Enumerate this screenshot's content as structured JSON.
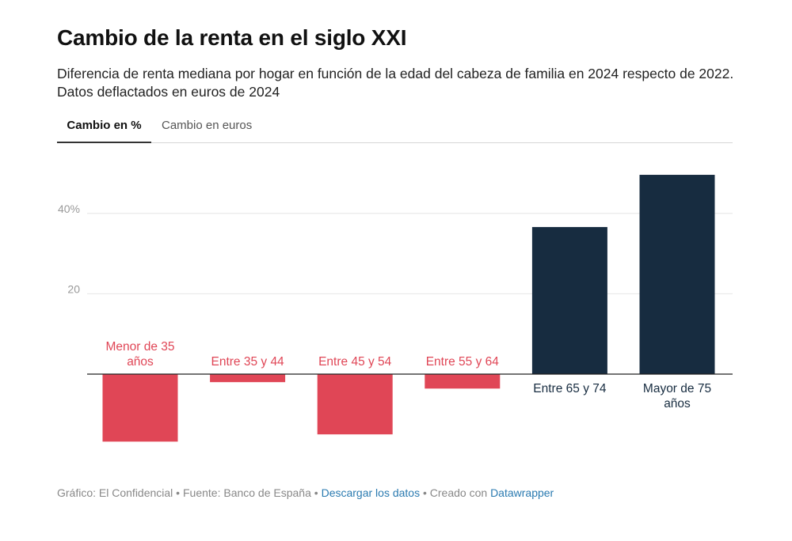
{
  "header": {
    "title": "Cambio de la renta en el siglo XXI",
    "subtitle": "Diferencia de renta mediana por hogar en función de la edad del cabeza de familia en 2024 respecto de 2022. Datos deflactados en euros de 2024"
  },
  "tabs": [
    {
      "label": "Cambio en %",
      "active": true
    },
    {
      "label": "Cambio en euros",
      "active": false
    }
  ],
  "colors": {
    "negative": "#e04656",
    "positive": "#172c40",
    "grid": "#e6e6e6",
    "tick": "#999999"
  },
  "chart_data": {
    "type": "bar",
    "categories": [
      "Menor de 35 años",
      "Entre 35 y 44",
      "Entre 45 y 54",
      "Entre 55 y 64",
      "Entre 65 y 74",
      "Mayor de 75 años"
    ],
    "values": [
      -16.8,
      -2.0,
      -15.0,
      -3.6,
      36.6,
      49.6
    ],
    "yticks": [
      {
        "value": 20,
        "label": "20"
      },
      {
        "value": 40,
        "label": "40%"
      }
    ],
    "ylim": [
      -20,
      55
    ],
    "grid": true
  },
  "footer": {
    "credit": "Gráfico: El Confidencial",
    "sep1": " • ",
    "source": "Fuente: Banco de España",
    "sep2": " • ",
    "download": "Descargar los datos",
    "sep3": " • ",
    "created": "Creado con ",
    "tool": "Datawrapper"
  }
}
